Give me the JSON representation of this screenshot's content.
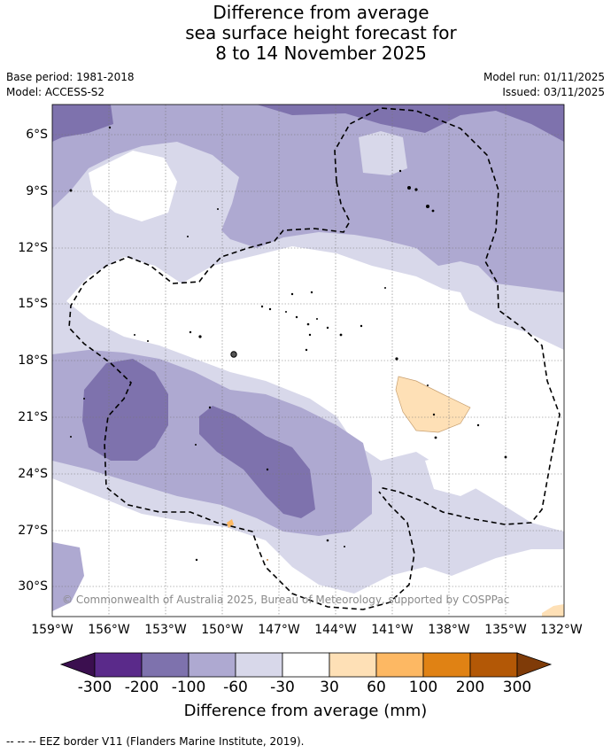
{
  "header": {
    "title_line1": "Difference from average",
    "title_line2": "sea surface height forecast for",
    "title_line3": "8 to 14 November 2025",
    "base_period": "Base period: 1981-2018",
    "model": "Model: ACCESS-S2",
    "model_run": "Model run: 01/11/2025",
    "issued": "Issued: 03/11/2025"
  },
  "map": {
    "lat_ticks": [
      "6°S",
      "9°S",
      "12°S",
      "15°S",
      "18°S",
      "21°S",
      "24°S",
      "27°S",
      "30°S"
    ],
    "lon_ticks": [
      "159°W",
      "156°W",
      "153°W",
      "150°W",
      "147°W",
      "144°W",
      "141°W",
      "138°W",
      "135°W",
      "132°W"
    ],
    "copyright": "© Commonwealth of Australia 2025, Bureau of Meteorology, supported by COSPPac"
  },
  "colorbar": {
    "labels": [
      "-300",
      "-200",
      "-100",
      "-60",
      "-30",
      "30",
      "60",
      "100",
      "200",
      "300"
    ],
    "title": "Difference from average (mm)",
    "colors": {
      "extend_low": "#3b0f4f",
      "neg_200_300": "#5a2a8a",
      "neg_100_200": "#7e72ad",
      "neg_60_100": "#aea9d1",
      "neg_30_60": "#d8d8ea",
      "neutral": "#ffffff",
      "pos_30_60": "#fee0b6",
      "pos_60_100": "#fdb863",
      "pos_100_200": "#e08214",
      "pos_200_300": "#b35806",
      "extend_high": "#7f3b08"
    }
  },
  "footer": {
    "legend": "--  --  -- EEZ border V11 (Flanders Marine Institute, 2019)."
  }
}
